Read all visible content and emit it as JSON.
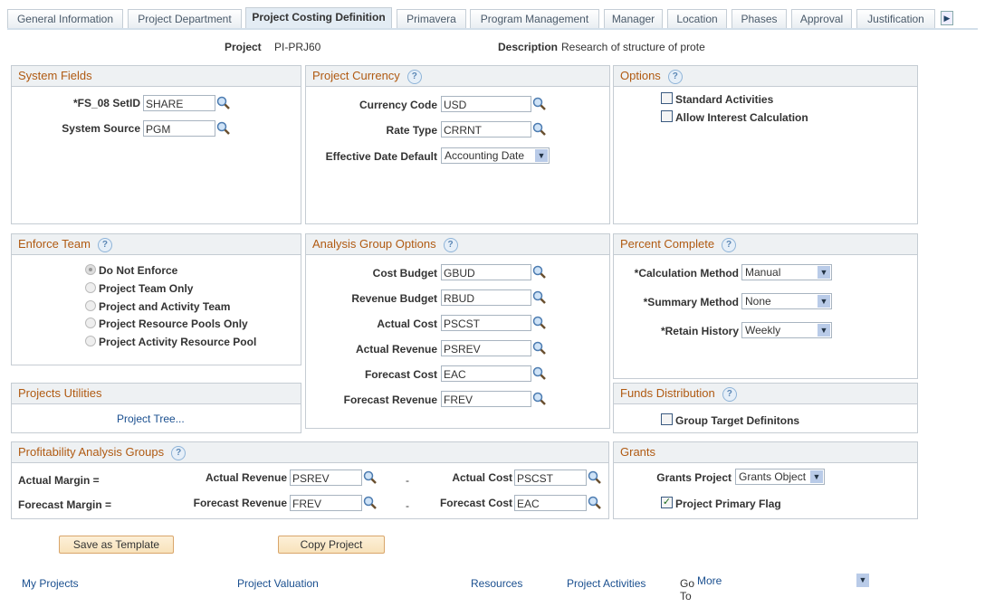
{
  "tabs": [
    "General Information",
    "Project Department",
    "Project Costing Definition",
    "Primavera",
    "Program Management",
    "Manager",
    "Location",
    "Phases",
    "Approval",
    "Justification"
  ],
  "active_tab": "Project Costing Definition",
  "header": {
    "project_label": "Project",
    "project_value": "PI-PRJ60",
    "description_label": "Description",
    "description_value": "Research of structure of prote"
  },
  "system_fields": {
    "title": "System Fields",
    "setid_label": "*FS_08 SetID",
    "setid_value": "SHARE",
    "source_label": "System Source",
    "source_value": "PGM"
  },
  "project_currency": {
    "title": "Project Currency",
    "currency_label": "Currency Code",
    "currency_value": "USD",
    "rate_label": "Rate Type",
    "rate_value": "CRRNT",
    "date_label": "Effective Date Default",
    "date_value": "Accounting Date"
  },
  "options": {
    "title": "Options",
    "standard": "Standard Activities",
    "interest": "Allow Interest Calculation"
  },
  "enforce_team": {
    "title": "Enforce Team",
    "options": [
      "Do Not Enforce",
      "Project Team Only",
      "Project and Activity Team",
      "Project Resource Pools Only",
      "Project Activity Resource Pool"
    ],
    "selected": "Do Not Enforce"
  },
  "analysis_group": {
    "title": "Analysis Group Options",
    "rows": [
      {
        "label": "Cost Budget",
        "value": "GBUD"
      },
      {
        "label": "Revenue Budget",
        "value": "RBUD"
      },
      {
        "label": "Actual Cost",
        "value": "PSCST"
      },
      {
        "label": "Actual Revenue",
        "value": "PSREV"
      },
      {
        "label": "Forecast Cost",
        "value": "EAC"
      },
      {
        "label": "Forecast Revenue",
        "value": "FREV"
      }
    ]
  },
  "percent_complete": {
    "title": "Percent Complete",
    "rows": [
      {
        "label": "*Calculation Method",
        "value": "Manual"
      },
      {
        "label": "*Summary Method",
        "value": "None"
      },
      {
        "label": "*Retain History",
        "value": "Weekly"
      }
    ]
  },
  "projects_utilities": {
    "title": "Projects Utilities",
    "link": "Project Tree..."
  },
  "funds_distribution": {
    "title": "Funds Distribution",
    "checkbox": "Group Target Definitons"
  },
  "profitability": {
    "title": "Profitability Analysis Groups",
    "actual_margin": "Actual Margin =",
    "forecast_margin": "Forecast Margin =",
    "actual_revenue_label": "Actual Revenue",
    "actual_revenue": "PSREV",
    "actual_cost_label": "Actual Cost",
    "actual_cost": "PSCST",
    "forecast_revenue_label": "Forecast Revenue",
    "forecast_revenue": "FREV",
    "forecast_cost_label": "Forecast Cost",
    "forecast_cost": "EAC",
    "minus": "-"
  },
  "grants": {
    "title": "Grants",
    "project_label": "Grants Project",
    "project_value": "Grants Object",
    "primary_flag": "Project Primary Flag",
    "primary_checked": true
  },
  "buttons": {
    "save_template": "Save as Template",
    "copy_project": "Copy Project"
  },
  "footer": {
    "links": [
      "My Projects",
      "Project Valuation",
      "Resources",
      "Project Activities"
    ],
    "goto": "Go To",
    "more": "More"
  }
}
